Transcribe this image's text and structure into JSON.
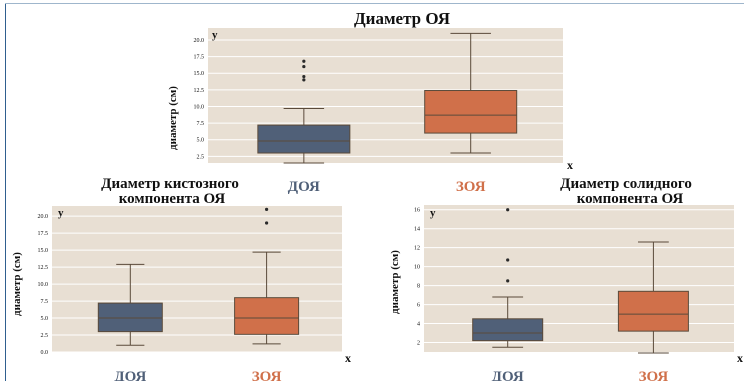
{
  "colors": {
    "plot_bg": "#e8dfd3",
    "grid": "#ffffff",
    "group_a": "#506078",
    "group_b": "#d0704a",
    "whisker": "#5a4a3a",
    "text": "#111111"
  },
  "chart_data": [
    {
      "type": "box",
      "title": "Диаметр ОЯ",
      "ylabel": "диаметр (см)",
      "y_axis_letter": "y",
      "x_axis_letter": "x",
      "ylim": [
        1.5,
        21.8
      ],
      "yticks": [
        2.5,
        5.0,
        7.5,
        10.0,
        12.5,
        15.0,
        17.5,
        20.0
      ],
      "ytick_labels": [
        "2.5",
        "5.0",
        "7.5",
        "10.0",
        "12.5",
        "15.0",
        "17.5",
        "20.0"
      ],
      "categories": [
        "ДОЯ",
        "ЗОЯ"
      ],
      "boxes": [
        {
          "name": "ДОЯ",
          "whisker_low": 1.5,
          "q1": 3.0,
          "median": 4.8,
          "q3": 7.2,
          "whisker_high": 9.7,
          "outliers": [
            14.0,
            14.5,
            16.0,
            16.8
          ]
        },
        {
          "name": "ЗОЯ",
          "whisker_low": 3.0,
          "q1": 6.0,
          "median": 8.7,
          "q3": 12.4,
          "whisker_high": 21.0,
          "outliers": []
        }
      ]
    },
    {
      "type": "box",
      "title": "Диаметр кистозного компонента ОЯ",
      "ylabel": "диаметр (см)",
      "y_axis_letter": "y",
      "x_axis_letter": "x",
      "ylim": [
        0.0,
        21.5
      ],
      "yticks": [
        0.0,
        2.5,
        5.0,
        7.5,
        10.0,
        12.5,
        15.0,
        17.5,
        20.0
      ],
      "ytick_labels": [
        "0.0",
        "2.5",
        "5.0",
        "7.5",
        "10.0",
        "12.5",
        "15.0",
        "17.5",
        "20.0"
      ],
      "categories": [
        "ДОЯ",
        "ЗОЯ"
      ],
      "boxes": [
        {
          "name": "ДОЯ",
          "whisker_low": 1.0,
          "q1": 3.0,
          "median": 5.0,
          "q3": 7.2,
          "whisker_high": 12.9,
          "outliers": []
        },
        {
          "name": "ЗОЯ",
          "whisker_low": 1.2,
          "q1": 2.6,
          "median": 5.0,
          "q3": 8.0,
          "whisker_high": 14.7,
          "outliers": [
            19.0,
            21.0
          ]
        }
      ]
    },
    {
      "type": "box",
      "title": "Диаметр солидного компонента ОЯ",
      "ylabel": "диаметр (см)",
      "y_axis_letter": "y",
      "x_axis_letter": "x",
      "ylim": [
        1.0,
        16.5
      ],
      "yticks": [
        2,
        4,
        6,
        8,
        10,
        12,
        14,
        16
      ],
      "ytick_labels": [
        "2",
        "4",
        "6",
        "8",
        "10",
        "12",
        "14",
        "16"
      ],
      "categories": [
        "ДОЯ",
        "ЗОЯ"
      ],
      "boxes": [
        {
          "name": "ДОЯ",
          "whisker_low": 1.5,
          "q1": 2.2,
          "median": 3.0,
          "q3": 4.5,
          "whisker_high": 6.8,
          "outliers": [
            8.5,
            10.7,
            16.0
          ]
        },
        {
          "name": "ЗОЯ",
          "whisker_low": 0.9,
          "q1": 3.2,
          "median": 5.0,
          "q3": 7.4,
          "whisker_high": 12.6,
          "outliers": []
        }
      ]
    }
  ]
}
